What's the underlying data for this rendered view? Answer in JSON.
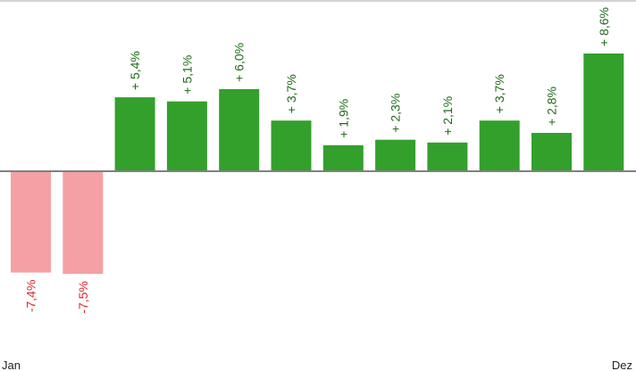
{
  "chart_data": {
    "type": "bar",
    "categories": [
      "Jan",
      "",
      "",
      "",
      "",
      "",
      "",
      "",
      "",
      "",
      "",
      "Dez"
    ],
    "values": [
      -7.4,
      -7.5,
      5.4,
      5.1,
      6.0,
      3.7,
      1.9,
      2.3,
      2.1,
      3.7,
      2.8,
      8.6
    ],
    "labels": [
      "-7,4%",
      "-7,5%",
      "+ 5,4%",
      "+ 5,1%",
      "+ 6,0%",
      "+ 3,7%",
      "+ 1,9%",
      "+ 2,3%",
      "+ 2,1%",
      "+ 3,7%",
      "+ 2,8%",
      "+ 8,6%"
    ],
    "title": "",
    "xlabel": "",
    "ylabel": "",
    "ylim": [
      -12.5,
      12.5
    ],
    "grid": false,
    "legend": "none",
    "colors": {
      "positive_bar": "#33a02c",
      "negative_bar": "#f4a0a4",
      "positive_label": "#1e6b17",
      "negative_label": "#e0262c",
      "axis": "#808080",
      "top_rule": "#a6a6a6"
    }
  }
}
